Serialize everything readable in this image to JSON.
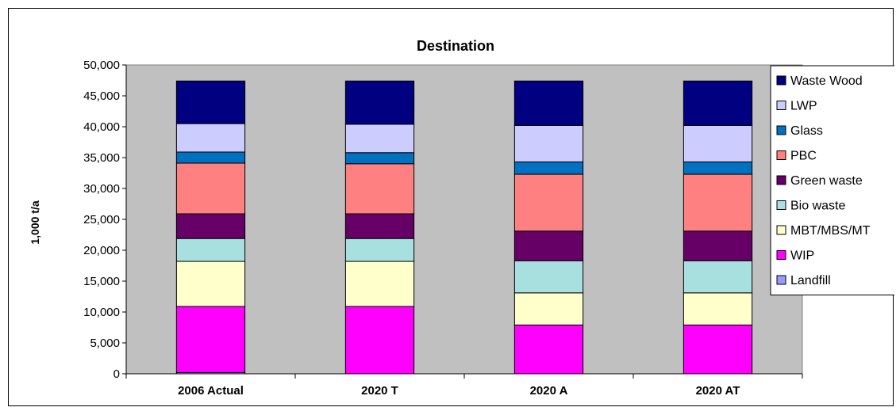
{
  "chart_data": {
    "type": "bar",
    "stacked": true,
    "title": "Destination",
    "xlabel": "",
    "ylabel": "1,000 t/a",
    "ylim": [
      0,
      50000
    ],
    "yticks": [
      0,
      5000,
      10000,
      15000,
      20000,
      25000,
      30000,
      35000,
      40000,
      45000,
      50000
    ],
    "ytick_labels": [
      "0",
      "5,000",
      "10,000",
      "15,000",
      "20,000",
      "25,000",
      "30,000",
      "35,000",
      "40,000",
      "45,000",
      "50,000"
    ],
    "grid": false,
    "plot_background": "#c0c0c0",
    "legend_position": "right",
    "categories": [
      "2006 Actual",
      "2020 T",
      "2020 A",
      "2020 AT"
    ],
    "series": [
      {
        "name": "Landfill",
        "color": "#9999ff",
        "values": [
          200,
          0,
          0,
          0
        ]
      },
      {
        "name": "WIP",
        "color": "#ff00ff",
        "values": [
          10700,
          10900,
          7900,
          7900
        ]
      },
      {
        "name": "MBT/MBS/MT",
        "color": "#ffffcc",
        "values": [
          7300,
          7300,
          5200,
          5200
        ]
      },
      {
        "name": "Bio waste",
        "color": "#a8e0e0",
        "values": [
          3700,
          3700,
          5200,
          5200
        ]
      },
      {
        "name": "Green waste",
        "color": "#660066",
        "values": [
          4000,
          4000,
          4800,
          4800
        ]
      },
      {
        "name": "PBC",
        "color": "#ff8080",
        "values": [
          8200,
          8100,
          9200,
          9200
        ]
      },
      {
        "name": "Glass",
        "color": "#0070c0",
        "values": [
          1800,
          1800,
          2000,
          2000
        ]
      },
      {
        "name": "LWP",
        "color": "#ccccff",
        "values": [
          4600,
          4600,
          5900,
          5900
        ]
      },
      {
        "name": "Waste Wood",
        "color": "#000080",
        "values": [
          6900,
          7000,
          7200,
          7200
        ]
      }
    ]
  }
}
